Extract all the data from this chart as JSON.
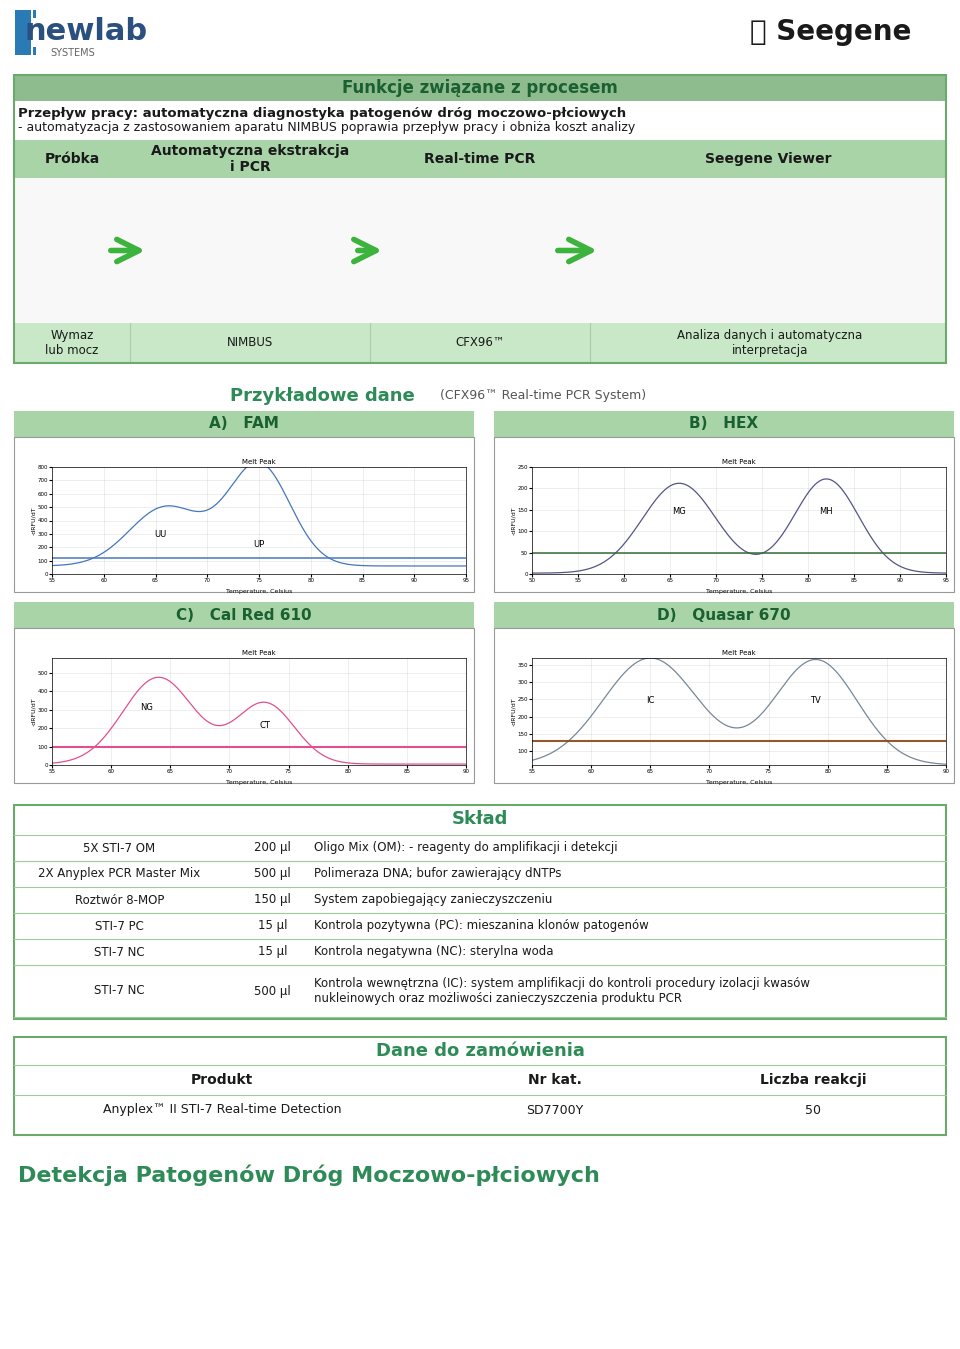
{
  "bg_color": "#ffffff",
  "green_header_color": "#8fbc8f",
  "green_light_color": "#b8ddb8",
  "green_text_color": "#2e8b57",
  "dark_text": "#1a1a1a",
  "arrow_color": "#3cb33c",
  "table_stripe": "#d8eed8",
  "header_title": "Funkcje związane z procesem",
  "workflow_bold": "Przepływ pracy: automatyczna diagnostyka patogenów dróg moczowo-płciowych",
  "workflow_sub": "- automatyzacja z zastosowaniem aparatu NIMBUS poprawia przepływ pracy i obniża koszt analizy",
  "col_headers": [
    "Próbka",
    "Automatyczna ekstrakcja\ni PCR",
    "Real-time PCR",
    "Seegene Viewer"
  ],
  "col_labels": [
    "Wymaz\nlub mocz",
    "NIMBUS",
    "CFX96™",
    "Analiza danych i automatyczna\ninterpretacja"
  ],
  "sample_title": "Przykładowe dane",
  "sample_sub": "(CFX96™ Real-time PCR System)",
  "panel_labels": [
    "A)   FAM",
    "B)   HEX",
    "C)   Cal Red 610",
    "D)   Quasar 670"
  ],
  "sklad_title": "Skład",
  "sklad_rows": [
    [
      "5X STI-7 OM",
      "200 µl",
      "Oligo Mix (OM): - reagenty do amplifikacji i detekcji"
    ],
    [
      "2X Anyplex PCR Master Mix",
      "500 µl",
      "Polimeraza DNA; bufor zawierający dNTPs"
    ],
    [
      "Roztwór 8-MOP",
      "150 µl",
      "System zapobiegający zanieczyszczeniu"
    ],
    [
      "STI-7 PC",
      "15 µl",
      "Kontrola pozytywna (PC): mieszanina klonów patogenów"
    ],
    [
      "STI-7 NC",
      "15 µl",
      "Kontrola negatywna (NC): sterylna woda"
    ],
    [
      "STI-7 NC",
      "500 µl",
      "Kontrola wewnętrzna (IC): system amplifikacji do kontroli procedury izolacji kwasów\nnukleinowych oraz możliwości zanieczyszczenia produktu PCR"
    ]
  ],
  "order_title": "Dane do zamówienia",
  "order_headers": [
    "Produkt",
    "Nr kat.",
    "Liczba reakcji"
  ],
  "order_row": [
    "Anyplex™ II STI-7 Real-time Detection",
    "SD7700Y",
    "50"
  ],
  "footer": "Detekcja Patogenów Dróg Moczowo-płciowych"
}
